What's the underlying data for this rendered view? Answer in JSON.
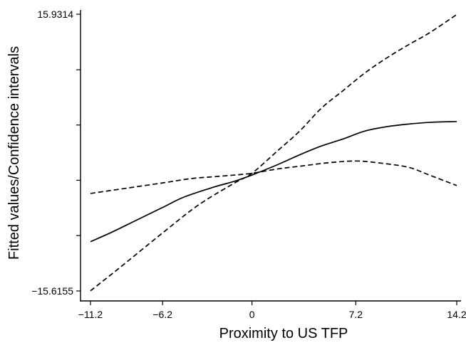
{
  "chart_data": {
    "type": "line",
    "title": "",
    "xlabel": "Proximity to US TFP",
    "ylabel": "Fitted values/Confidence intervals",
    "xlim": [
      -11.2,
      14.2
    ],
    "ylim": [
      -15.6155,
      15.9314
    ],
    "x_ticks": [
      -11.2,
      -6.2,
      0,
      7.2,
      14.2
    ],
    "x_tick_labels": [
      "−11.2",
      "−6.2",
      "0",
      "7.2",
      "14.2"
    ],
    "y_ticks": [
      -15.6155,
      -9.3,
      -3.0,
      3.3,
      9.6,
      15.9314
    ],
    "y_tick_labels": [
      "−15.6155",
      "",
      "",
      "",
      "",
      "15.9314"
    ],
    "grid": false,
    "legend": "none",
    "series": [
      {
        "style": "solid",
        "x": [
          -11.2,
          -9.7,
          -8.2,
          -6.2,
          -4.7,
          -2.7,
          -1.2,
          0,
          1.8,
          3.3,
          4.8,
          6.3,
          7.8,
          9.3,
          10.8,
          12.3,
          14.2
        ],
        "y": [
          -10.0,
          -8.9,
          -7.7,
          -6.1,
          -4.9,
          -3.8,
          -3.1,
          -2.4,
          -1.2,
          -0.1,
          0.9,
          1.7,
          2.6,
          3.1,
          3.4,
          3.6,
          3.7
        ]
      },
      {
        "style": "dashed",
        "x": [
          -11.2,
          -8.7,
          -6.2,
          -4.2,
          -2.7,
          -1.2,
          0,
          1.8,
          3.3,
          5.3,
          7.2,
          8.7,
          10.8,
          12.3,
          14.2
        ],
        "y": [
          -4.5,
          -3.9,
          -3.3,
          -2.8,
          -2.6,
          -2.4,
          -2.2,
          -1.7,
          -1.4,
          -1.0,
          -0.8,
          -1.0,
          -1.5,
          -2.4,
          -3.6
        ]
      },
      {
        "style": "dashed",
        "x": [
          -11.2,
          -9.2,
          -6.2,
          -3.7,
          -1.2,
          0,
          1.8,
          3.3,
          4.8,
          6.3,
          7.8,
          9.3,
          10.8,
          12.3,
          14.2
        ],
        "y": [
          -15.6,
          -13.0,
          -9.0,
          -5.8,
          -3.3,
          -2.2,
          0.4,
          2.6,
          5.2,
          7.2,
          9.2,
          10.9,
          12.4,
          13.8,
          15.9
        ]
      }
    ]
  }
}
